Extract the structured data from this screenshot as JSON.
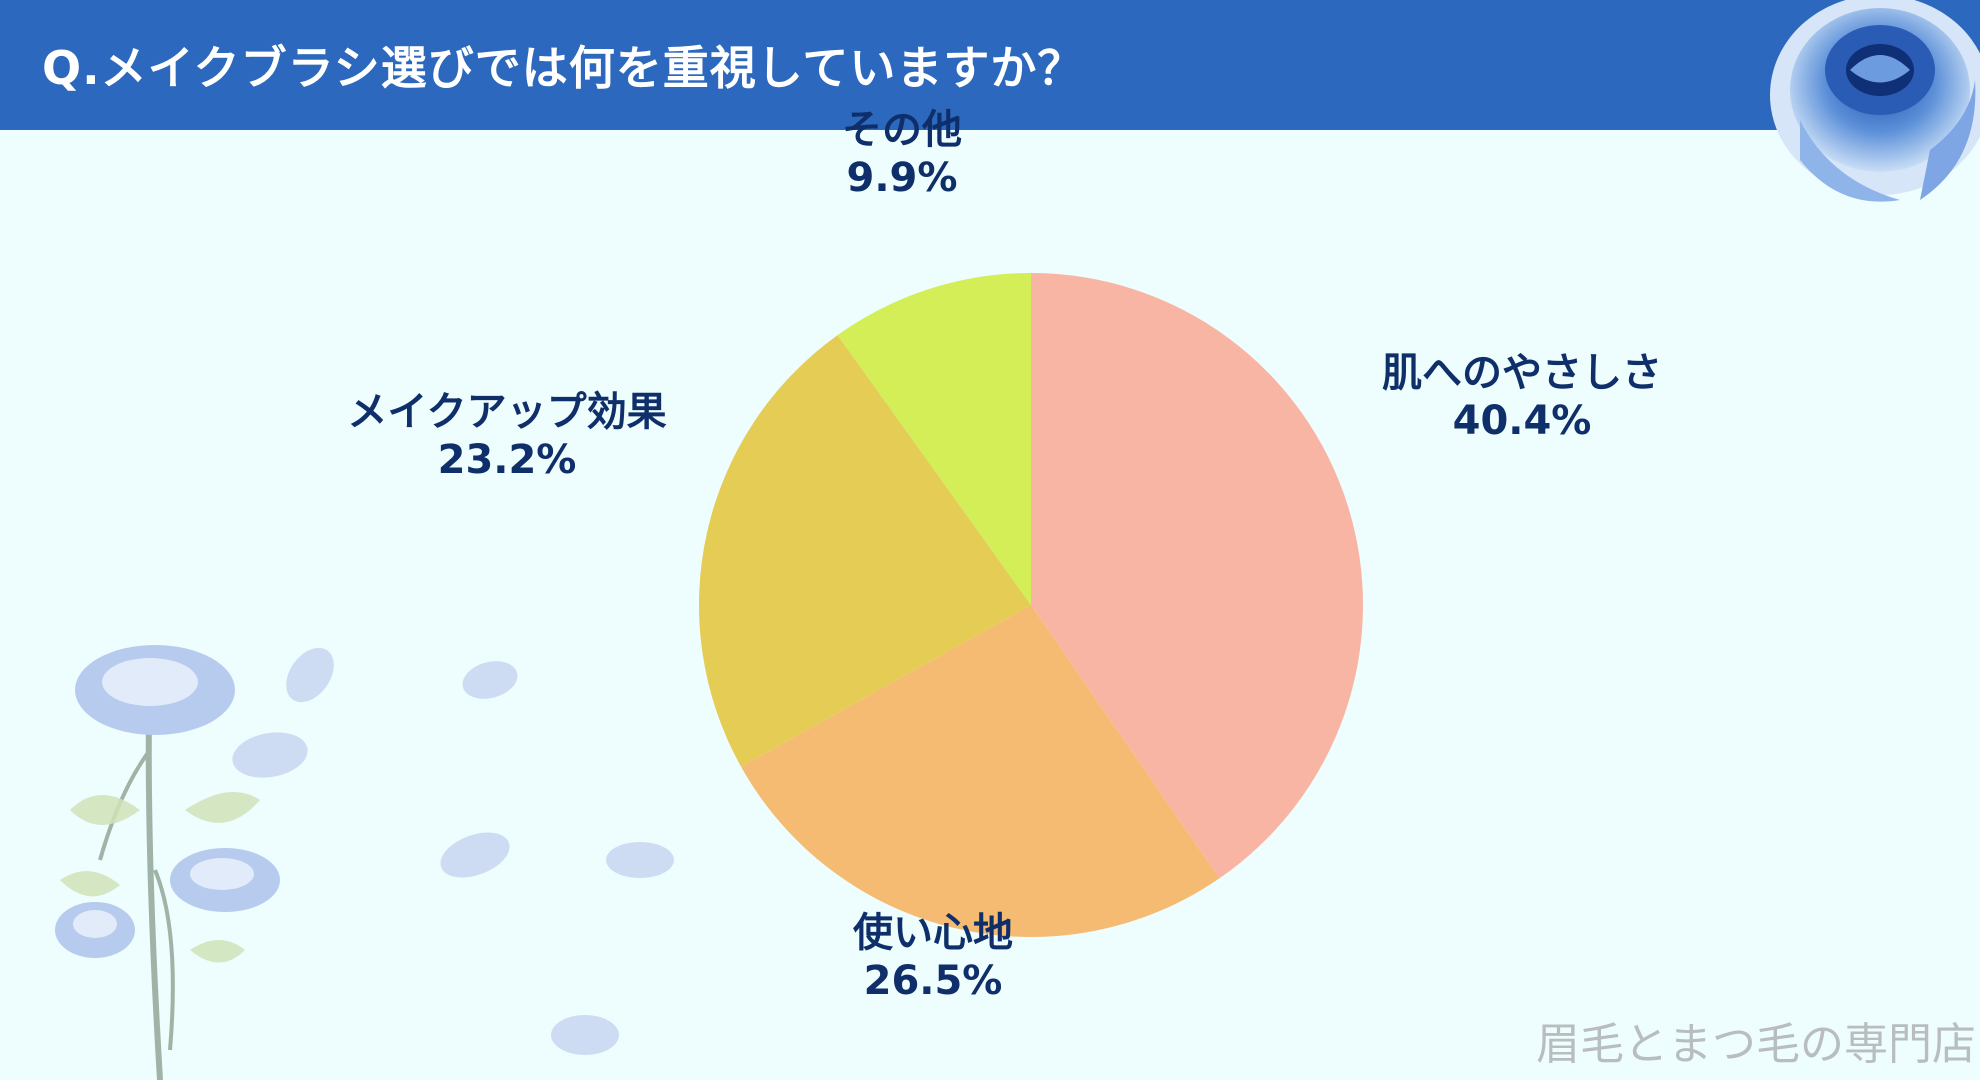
{
  "header": {
    "title": "Q.メイクブラシ選びでは何を重視していますか？",
    "background": "#2c68bd"
  },
  "watermark": "眉毛とまつ毛の専門店",
  "decorations": {
    "top_right": "blue-rose-icon",
    "bottom_left": "rose-branch-icon",
    "petals": "petal-icon"
  },
  "chart_data": {
    "type": "pie",
    "title": "Q.メイクブラシ選びでは何を重視していますか？",
    "start": "12 o'clock",
    "direction": "clockwise",
    "slices": [
      {
        "label": "肌へのやさしさ",
        "value": 40.4,
        "value_label": "40.4%",
        "color": "#f9b5a3"
      },
      {
        "label": "使い心地",
        "value": 26.5,
        "value_label": "26.5%",
        "color": "#f5bb73"
      },
      {
        "label": "メイクアップ効果",
        "value": 23.2,
        "value_label": "23.2%",
        "color": "#e4cc55"
      },
      {
        "label": "その他",
        "value": 9.9,
        "value_label": "9.9%",
        "color": "#d3ee57"
      }
    ]
  }
}
